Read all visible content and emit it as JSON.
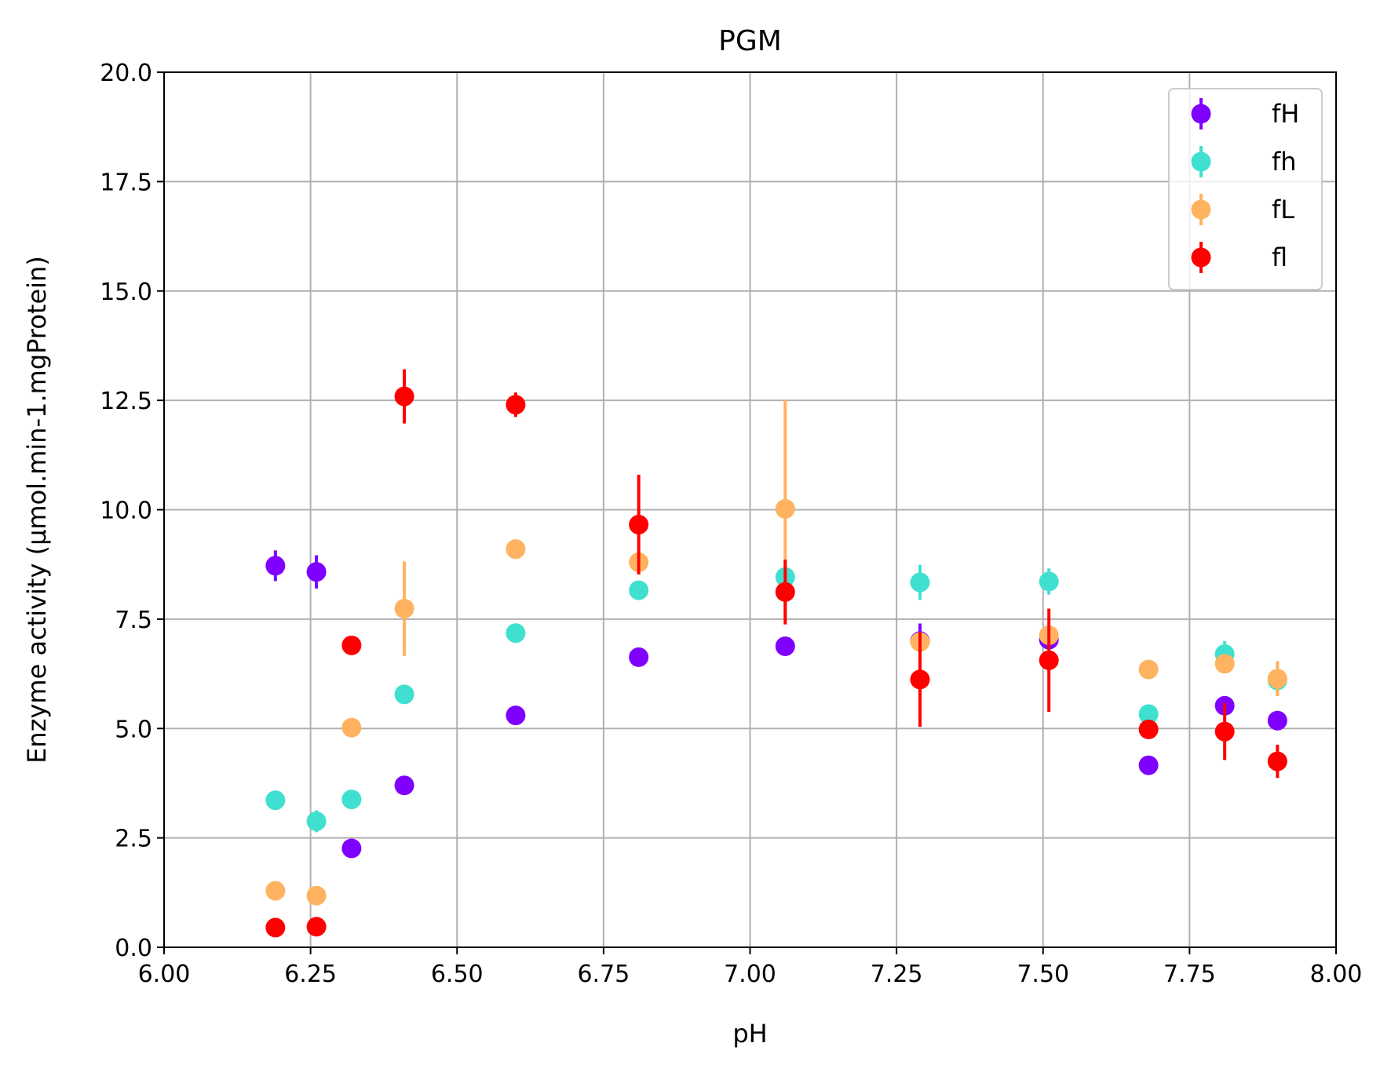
{
  "chart_data": {
    "type": "scatter",
    "title": "PGM",
    "xlabel": "pH",
    "ylabel": "Enzyme activity (µmol.min-1.mgProtein)",
    "xlim": [
      6.0,
      8.0
    ],
    "ylim": [
      0.0,
      20.0
    ],
    "x_ticks": [
      "6.00",
      "6.25",
      "6.50",
      "6.75",
      "7.00",
      "7.25",
      "7.50",
      "7.75",
      "8.00"
    ],
    "y_ticks": [
      "0.0",
      "2.5",
      "5.0",
      "7.5",
      "10.0",
      "12.5",
      "15.0",
      "17.5",
      "20.0"
    ],
    "grid": true,
    "legend_position": "top-right",
    "series": [
      {
        "name": "fH",
        "color": "#8000ff",
        "points": [
          {
            "x": 6.19,
            "y": 8.72,
            "err": 0.35
          },
          {
            "x": 6.26,
            "y": 8.58,
            "err": 0.38
          },
          {
            "x": 6.32,
            "y": 2.26,
            "err": 0.1
          },
          {
            "x": 6.41,
            "y": 3.7,
            "err": 0.1
          },
          {
            "x": 6.6,
            "y": 5.3,
            "err": 0.1
          },
          {
            "x": 6.81,
            "y": 6.63,
            "err": 0.1
          },
          {
            "x": 7.06,
            "y": 6.88,
            "err": 0.1
          },
          {
            "x": 7.29,
            "y": 7.0,
            "err": 0.4
          },
          {
            "x": 7.51,
            "y": 7.03,
            "err": 0.2
          },
          {
            "x": 7.68,
            "y": 4.16,
            "err": 0.1
          },
          {
            "x": 7.81,
            "y": 5.52,
            "err": 0.1
          },
          {
            "x": 7.9,
            "y": 5.18,
            "err": 0.1
          }
        ]
      },
      {
        "name": "fh",
        "color": "#40e0d0",
        "points": [
          {
            "x": 6.19,
            "y": 3.36,
            "err": 0.1
          },
          {
            "x": 6.26,
            "y": 2.88,
            "err": 0.25
          },
          {
            "x": 6.32,
            "y": 3.38,
            "err": 0.1
          },
          {
            "x": 6.41,
            "y": 5.78,
            "err": 0.1
          },
          {
            "x": 6.6,
            "y": 7.18,
            "err": 0.1
          },
          {
            "x": 6.81,
            "y": 8.16,
            "err": 0.1
          },
          {
            "x": 7.06,
            "y": 8.46,
            "err": 0.1
          },
          {
            "x": 7.29,
            "y": 8.34,
            "err": 0.4
          },
          {
            "x": 7.51,
            "y": 8.36,
            "err": 0.3
          },
          {
            "x": 7.68,
            "y": 5.33,
            "err": 0.1
          },
          {
            "x": 7.81,
            "y": 6.7,
            "err": 0.3
          },
          {
            "x": 7.9,
            "y": 6.1,
            "err": 0.35
          }
        ]
      },
      {
        "name": "fL",
        "color": "#ffb360",
        "points": [
          {
            "x": 6.19,
            "y": 1.29,
            "err": 0.1
          },
          {
            "x": 6.26,
            "y": 1.18,
            "err": 0.1
          },
          {
            "x": 6.32,
            "y": 5.02,
            "err": 0.1
          },
          {
            "x": 6.41,
            "y": 7.74,
            "err": 1.08
          },
          {
            "x": 6.6,
            "y": 9.1,
            "err": 0.1
          },
          {
            "x": 6.81,
            "y": 8.8,
            "err": 0.25
          },
          {
            "x": 7.06,
            "y": 10.02,
            "err": 2.5
          },
          {
            "x": 7.29,
            "y": 6.98,
            "err": 0.1
          },
          {
            "x": 7.51,
            "y": 7.13,
            "err": 0.2
          },
          {
            "x": 7.68,
            "y": 6.35,
            "err": 0.1
          },
          {
            "x": 7.81,
            "y": 6.48,
            "err": 0.1
          },
          {
            "x": 7.9,
            "y": 6.14,
            "err": 0.4
          }
        ]
      },
      {
        "name": "fl",
        "color": "#ff0000",
        "points": [
          {
            "x": 6.19,
            "y": 0.45,
            "err": 0.1
          },
          {
            "x": 6.26,
            "y": 0.47,
            "err": 0.1
          },
          {
            "x": 6.32,
            "y": 6.9,
            "err": 0.1
          },
          {
            "x": 6.41,
            "y": 12.59,
            "err": 0.62
          },
          {
            "x": 6.6,
            "y": 12.4,
            "err": 0.28
          },
          {
            "x": 6.81,
            "y": 9.66,
            "err": 1.14
          },
          {
            "x": 7.06,
            "y": 8.12,
            "err": 0.74
          },
          {
            "x": 7.29,
            "y": 6.12,
            "err": 1.08
          },
          {
            "x": 7.51,
            "y": 6.56,
            "err": 1.18
          },
          {
            "x": 7.68,
            "y": 4.98,
            "err": 0.1
          },
          {
            "x": 7.81,
            "y": 4.93,
            "err": 0.65
          },
          {
            "x": 7.9,
            "y": 4.25,
            "err": 0.38
          }
        ]
      }
    ]
  }
}
